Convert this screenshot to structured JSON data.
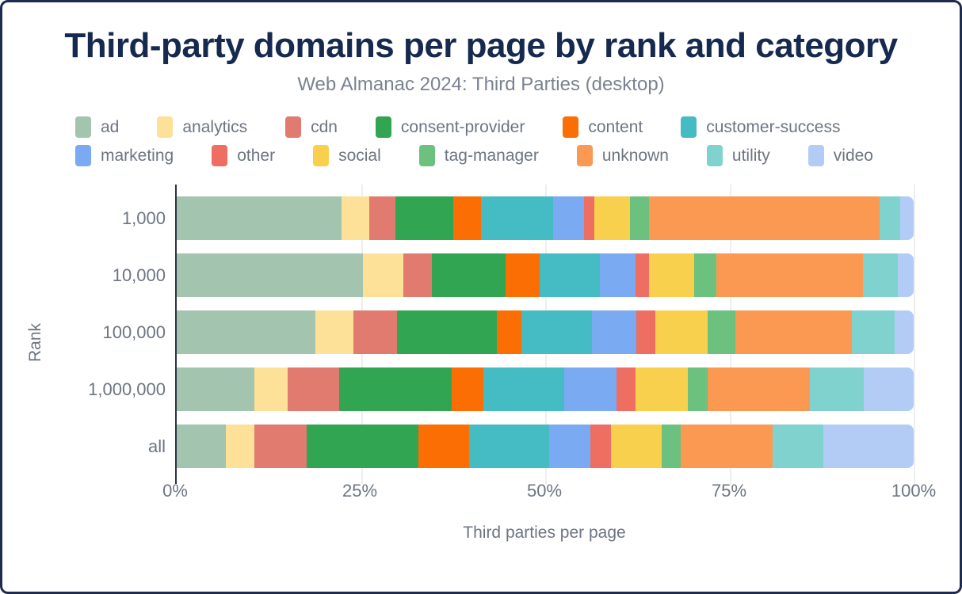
{
  "header": {
    "title": "Third-party domains per page by rank and category",
    "subtitle": "Web Almanac 2024: Third Parties (desktop)"
  },
  "y_axis": {
    "title": "Rank"
  },
  "x_axis": {
    "title": "Third parties per page"
  },
  "legend": {
    "rows": [
      [
        0,
        1,
        2,
        3,
        4,
        5
      ],
      [
        6,
        7,
        8,
        9,
        10,
        11,
        12
      ]
    ]
  },
  "colors": {
    "frame_border": "#1d2c4e",
    "title_text": "#16294f",
    "muted_text": "#6d7582",
    "axis_line": "#2a3342",
    "gridline": "#eceef2"
  },
  "chart_data": {
    "type": "bar",
    "orientation": "horizontal",
    "stacked": true,
    "units": "percent of third parties per page",
    "title": "Third-party domains per page by rank and category",
    "subtitle": "Web Almanac 2024: Third Parties (desktop)",
    "xlabel": "Third parties per page",
    "ylabel": "Rank",
    "xlim": [
      0,
      100
    ],
    "grid": "vertical",
    "legend_position": "top",
    "x_ticks": [
      {
        "label": "0%",
        "value": 0
      },
      {
        "label": "25%",
        "value": 25
      },
      {
        "label": "50%",
        "value": 50
      },
      {
        "label": "75%",
        "value": 75
      },
      {
        "label": "100%",
        "value": 100
      }
    ],
    "categories": [
      "1,000",
      "10,000",
      "100,000",
      "1,000,000",
      "all"
    ],
    "series": [
      {
        "name": "ad",
        "color": "#a3c4ae",
        "values": [
          22.4,
          25.3,
          18.8,
          10.5,
          6.7
        ]
      },
      {
        "name": "analytics",
        "color": "#fde199",
        "values": [
          3.7,
          5.4,
          5.2,
          4.6,
          3.8
        ]
      },
      {
        "name": "cdn",
        "color": "#e17b70",
        "values": [
          3.6,
          3.9,
          5.9,
          6.9,
          7.1
        ]
      },
      {
        "name": "consent-provider",
        "color": "#32a553",
        "values": [
          7.8,
          10.0,
          13.5,
          15.3,
          15.2
        ]
      },
      {
        "name": "content",
        "color": "#fa6e03",
        "values": [
          3.8,
          4.7,
          3.4,
          4.3,
          6.9
        ]
      },
      {
        "name": "customer-success",
        "color": "#45bbc3",
        "values": [
          9.8,
          8.1,
          9.6,
          11.0,
          10.8
        ]
      },
      {
        "name": "marketing",
        "color": "#7aaaf2",
        "values": [
          4.2,
          4.9,
          6.0,
          7.1,
          5.6
        ]
      },
      {
        "name": "other",
        "color": "#ee6e62",
        "values": [
          1.4,
          1.8,
          2.5,
          2.6,
          2.8
        ]
      },
      {
        "name": "social",
        "color": "#f9d04e",
        "values": [
          4.8,
          6.1,
          7.2,
          7.1,
          6.9
        ]
      },
      {
        "name": "tag-manager",
        "color": "#6cc17e",
        "values": [
          2.6,
          3.0,
          3.7,
          2.7,
          2.6
        ]
      },
      {
        "name": "unknown",
        "color": "#fb9851",
        "values": [
          31.3,
          19.9,
          15.8,
          13.8,
          12.5
        ]
      },
      {
        "name": "utility",
        "color": "#80d2cf",
        "values": [
          2.8,
          4.8,
          5.8,
          7.3,
          6.9
        ]
      },
      {
        "name": "video",
        "color": "#b3ccf6",
        "values": [
          1.8,
          2.1,
          2.6,
          6.8,
          12.2
        ]
      }
    ]
  }
}
